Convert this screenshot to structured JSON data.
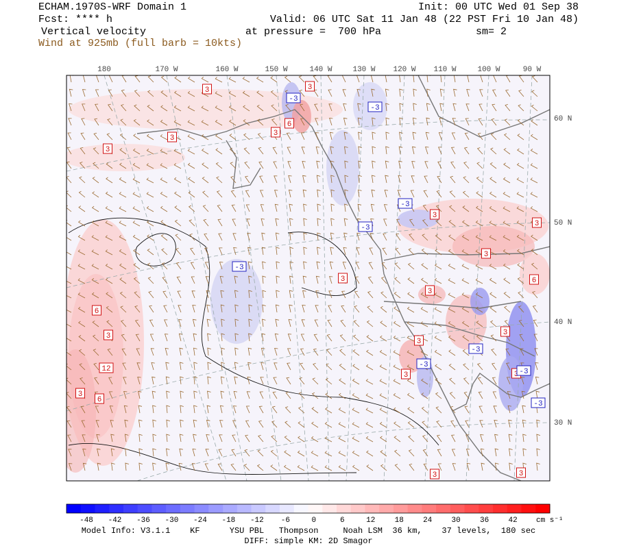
{
  "header": {
    "title": "ECHAM.1970S-WRF Domain 1",
    "init": "Init: 00 UTC Wed 01 Sep 38",
    "fcst": "Fcst: **** h",
    "valid": "Valid: 06 UTC Sat 11 Jan 48 (22 PST Fri 10 Jan 48)",
    "field": "Vertical velocity",
    "level": "at pressure =  700 hPa",
    "smooth": "sm= 2",
    "wind": "Wind at 925mb (full barb = 10kts)"
  },
  "map": {
    "longitude_labels": [
      "180",
      "170 W",
      "160 W",
      "150 W",
      "140 W",
      "130 W",
      "120 W",
      "110 W",
      "100 W",
      "90 W"
    ],
    "latitude_labels": [
      "60 N",
      "50 N",
      "40 N",
      "30 N"
    ],
    "contour_labels": [
      "3",
      "3",
      "-3",
      "-3",
      "6",
      "3",
      "3",
      "3",
      "-3",
      "3",
      "-3",
      "3",
      "3",
      "-3",
      "3",
      "6",
      "3",
      "6",
      "3",
      "3",
      "3",
      "-3",
      "-3",
      "12",
      "3",
      "-3",
      "3",
      "3",
      "6",
      "-3",
      "3",
      "3"
    ]
  },
  "colorbar": {
    "ticks": [
      -48,
      -42,
      -36,
      -30,
      -24,
      -18,
      -12,
      -6,
      0,
      6,
      12,
      18,
      24,
      30,
      36,
      42
    ],
    "unit": "cm s⁻¹"
  },
  "footer": {
    "model_info": "Model Info: V3.1.1    KF      YSU PBL   Thompson     Noah LSM  36 km,    37 levels,  180 sec",
    "diff": "DIFF: simple KM: 2D Smagor"
  }
}
